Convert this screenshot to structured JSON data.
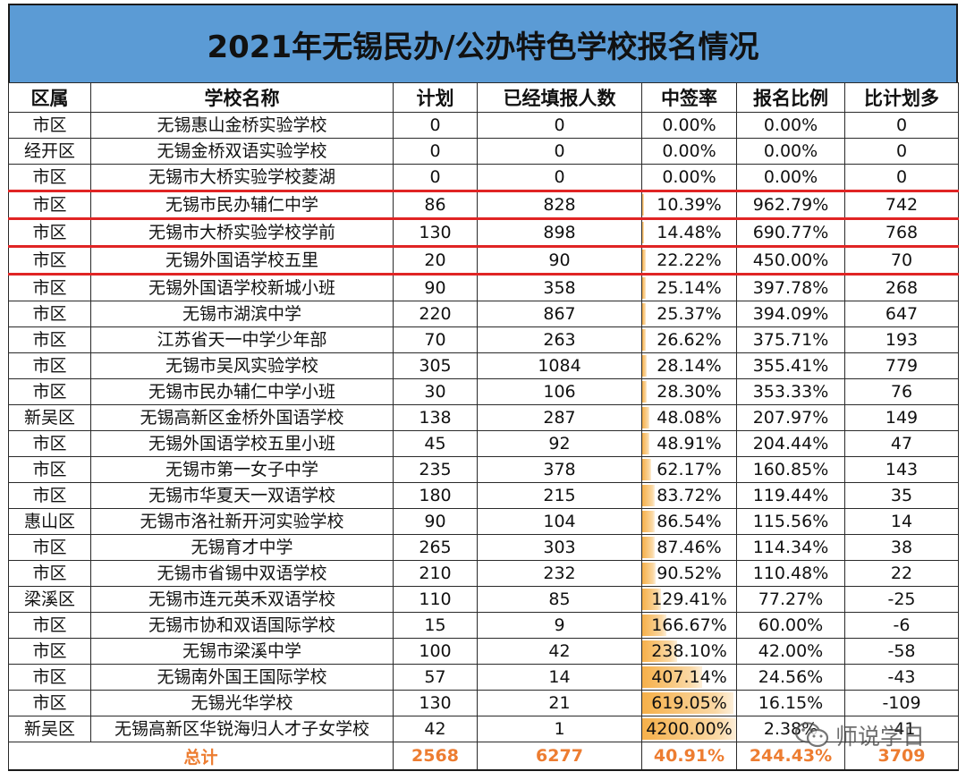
{
  "title": "2021年无锡民办/公办特色学校报名情况",
  "headers": [
    "区属",
    "学校名称",
    "计划",
    "已经填报人数",
    "中签率",
    "报名比例",
    "比计划多"
  ],
  "rows": [
    {
      "district": "市区",
      "school": "无锡惠山金桥实验学校",
      "plan": "0",
      "applicants": "0",
      "rate": "0.00%",
      "rate_value": 0,
      "ratio": "0.00%",
      "diff": "0"
    },
    {
      "district": "经开区",
      "school": "无锡金桥双语实验学校",
      "plan": "0",
      "applicants": "0",
      "rate": "0.00%",
      "rate_value": 0,
      "ratio": "0.00%",
      "diff": "0"
    },
    {
      "district": "市区",
      "school": "无锡市大桥实验学校菱湖",
      "plan": "0",
      "applicants": "0",
      "rate": "0.00%",
      "rate_value": 0,
      "ratio": "0.00%",
      "diff": "0"
    },
    {
      "district": "市区",
      "school": "无锡市民办辅仁中学",
      "plan": "86",
      "applicants": "828",
      "rate": "10.39%",
      "rate_value": 10.39,
      "ratio": "962.79%",
      "diff": "742",
      "highlight": true
    },
    {
      "district": "市区",
      "school": "无锡市大桥实验学校学前",
      "plan": "130",
      "applicants": "898",
      "rate": "14.48%",
      "rate_value": 14.48,
      "ratio": "690.77%",
      "diff": "768",
      "highlight": true
    },
    {
      "district": "市区",
      "school": "无锡外国语学校五里",
      "plan": "20",
      "applicants": "90",
      "rate": "22.22%",
      "rate_value": 22.22,
      "ratio": "450.00%",
      "diff": "70",
      "highlight": true
    },
    {
      "district": "市区",
      "school": "无锡外国语学校新城小班",
      "plan": "90",
      "applicants": "358",
      "rate": "25.14%",
      "rate_value": 25.14,
      "ratio": "397.78%",
      "diff": "268"
    },
    {
      "district": "市区",
      "school": "无锡市湖滨中学",
      "plan": "220",
      "applicants": "867",
      "rate": "25.37%",
      "rate_value": 25.37,
      "ratio": "394.09%",
      "diff": "647"
    },
    {
      "district": "市区",
      "school": "江苏省天一中学少年部",
      "plan": "70",
      "applicants": "263",
      "rate": "26.62%",
      "rate_value": 26.62,
      "ratio": "375.71%",
      "diff": "193"
    },
    {
      "district": "市区",
      "school": "无锡市吴风实验学校",
      "plan": "305",
      "applicants": "1084",
      "rate": "28.14%",
      "rate_value": 28.14,
      "ratio": "355.41%",
      "diff": "779"
    },
    {
      "district": "市区",
      "school": "无锡市民办辅仁中学小班",
      "plan": "30",
      "applicants": "106",
      "rate": "28.30%",
      "rate_value": 28.3,
      "ratio": "353.33%",
      "diff": "76"
    },
    {
      "district": "新吴区",
      "school": "无锡高新区金桥外国语学校",
      "plan": "138",
      "applicants": "287",
      "rate": "48.08%",
      "rate_value": 48.08,
      "ratio": "207.97%",
      "diff": "149"
    },
    {
      "district": "市区",
      "school": "无锡外国语学校五里小班",
      "plan": "45",
      "applicants": "92",
      "rate": "48.91%",
      "rate_value": 48.91,
      "ratio": "204.44%",
      "diff": "47"
    },
    {
      "district": "市区",
      "school": "无锡市第一女子中学",
      "plan": "235",
      "applicants": "378",
      "rate": "62.17%",
      "rate_value": 62.17,
      "ratio": "160.85%",
      "diff": "143"
    },
    {
      "district": "市区",
      "school": "无锡市华夏天一双语学校",
      "plan": "180",
      "applicants": "215",
      "rate": "83.72%",
      "rate_value": 83.72,
      "ratio": "119.44%",
      "diff": "35"
    },
    {
      "district": "惠山区",
      "school": "无锡市洛社新开河实验学校",
      "plan": "90",
      "applicants": "104",
      "rate": "86.54%",
      "rate_value": 86.54,
      "ratio": "115.56%",
      "diff": "14"
    },
    {
      "district": "市区",
      "school": "无锡育才中学",
      "plan": "265",
      "applicants": "303",
      "rate": "87.46%",
      "rate_value": 87.46,
      "ratio": "114.34%",
      "diff": "38"
    },
    {
      "district": "市区",
      "school": "无锡市省锡中双语学校",
      "plan": "210",
      "applicants": "232",
      "rate": "90.52%",
      "rate_value": 90.52,
      "ratio": "110.48%",
      "diff": "22"
    },
    {
      "district": "梁溪区",
      "school": "无锡市连元英禾双语学校",
      "plan": "110",
      "applicants": "85",
      "rate": "129.41%",
      "rate_value": 129.41,
      "ratio": "77.27%",
      "diff": "-25"
    },
    {
      "district": "市区",
      "school": "无锡市协和双语国际学校",
      "plan": "15",
      "applicants": "9",
      "rate": "166.67%",
      "rate_value": 166.67,
      "ratio": "60.00%",
      "diff": "-6"
    },
    {
      "district": "市区",
      "school": "无锡市梁溪中学",
      "plan": "100",
      "applicants": "42",
      "rate": "238.10%",
      "rate_value": 238.1,
      "ratio": "42.00%",
      "diff": "-58"
    },
    {
      "district": "市区",
      "school": "无锡南外国王国际学校",
      "plan": "57",
      "applicants": "14",
      "rate": "407.14%",
      "rate_value": 407.14,
      "ratio": "24.56%",
      "diff": "-43"
    },
    {
      "district": "市区",
      "school": "无锡光华学校",
      "plan": "130",
      "applicants": "21",
      "rate": "619.05%",
      "rate_value": 619.05,
      "ratio": "16.15%",
      "diff": "-109"
    },
    {
      "district": "新吴区",
      "school": "无锡高新区华锐海归人才子女学校",
      "plan": "42",
      "applicants": "1",
      "rate": "4200.00%",
      "rate_value": 4200,
      "ratio": "2.38%",
      "diff": "-41"
    }
  ],
  "rate_bar_max": 640,
  "total": {
    "label": "总计",
    "plan": "2568",
    "applicants": "6277",
    "rate": "40.91%",
    "ratio": "244.43%",
    "diff": "3709"
  },
  "watermark": {
    "text": "师说学日",
    "icon": "wechat-icon"
  },
  "colors": {
    "title_bg": "#5b9bd5",
    "highlight_border": "#e02424",
    "total_text": "#ed7d31",
    "rate_bar": "#f6b04a"
  }
}
